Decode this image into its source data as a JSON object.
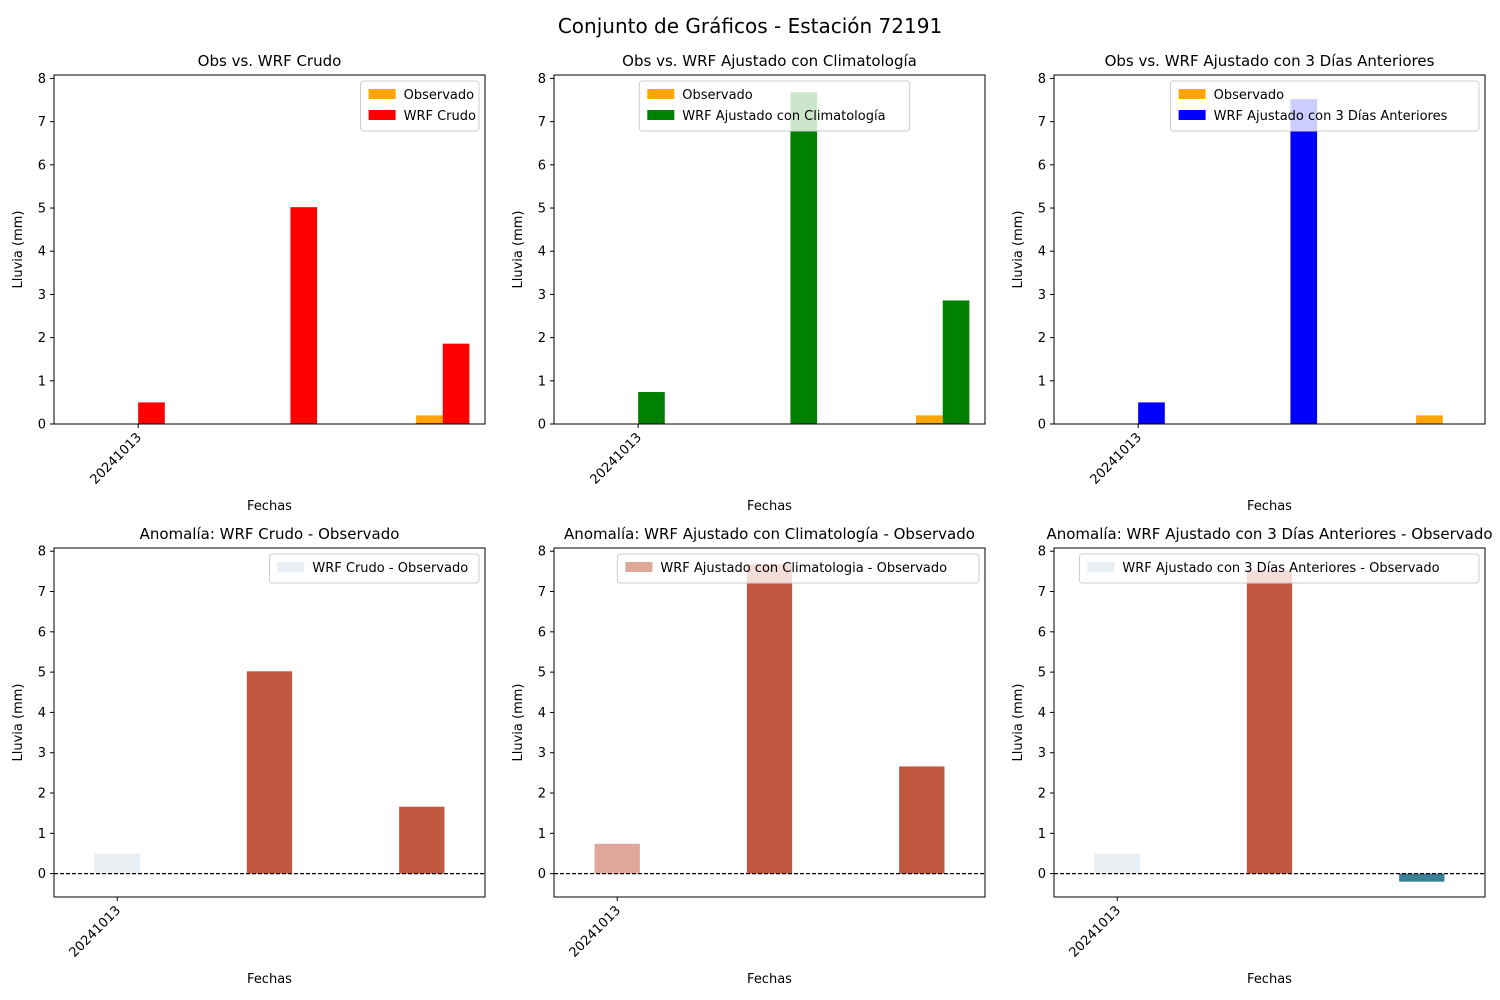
{
  "figure": {
    "title": "Conjunto de Gráficos - Estación 72191"
  },
  "chart_data": [
    {
      "type": "bar",
      "title": "Obs vs. WRF Crudo",
      "xlabel": "Fechas",
      "ylabel": "Lluvia (mm)",
      "x_tick_label": "20241013",
      "ylim": [
        0,
        8.08
      ],
      "yticks": [
        0,
        1,
        2,
        3,
        4,
        5,
        6,
        7,
        8
      ],
      "legend_position": "upper right",
      "grid": false,
      "slots": 3,
      "series": [
        {
          "name": "Observado",
          "color": "#ffa500",
          "values": [
            0,
            0,
            0.2
          ]
        },
        {
          "name": "WRF Crudo",
          "color": "#ff0000",
          "values": [
            0.5,
            5.02,
            1.86
          ]
        }
      ],
      "extra_bars": [
        {
          "slot": 2,
          "offset": -0.5,
          "value": 0.02,
          "color": "#ff0000"
        }
      ]
    },
    {
      "type": "bar",
      "title": "Obs vs. WRF Ajustado con Climatología",
      "xlabel": "Fechas",
      "ylabel": "Lluvia (mm)",
      "x_tick_label": "20241013",
      "ylim": [
        0,
        8.08
      ],
      "yticks": [
        0,
        1,
        2,
        3,
        4,
        5,
        6,
        7,
        8
      ],
      "legend_position": "upper center",
      "grid": false,
      "slots": 3,
      "series": [
        {
          "name": "Observado",
          "color": "#ffa500",
          "values": [
            0,
            0,
            0.2
          ]
        },
        {
          "name": "WRF Ajustado con Climatología",
          "color": "#008000",
          "values": [
            0.74,
            7.68,
            2.86
          ]
        }
      ],
      "extra_bars": [
        {
          "slot": 2,
          "offset": -0.5,
          "value": 0.02,
          "color": "#008000"
        }
      ]
    },
    {
      "type": "bar",
      "title": "Obs vs. WRF Ajustado con 3 Días Anteriores",
      "xlabel": "Fechas",
      "ylabel": "Lluvia (mm)",
      "x_tick_label": "20241013",
      "ylim": [
        0,
        8.08
      ],
      "yticks": [
        0,
        1,
        2,
        3,
        4,
        5,
        6,
        7,
        8
      ],
      "legend_position": "upper right",
      "grid": false,
      "slots": 3,
      "series": [
        {
          "name": "Observado",
          "color": "#ffa500",
          "values": [
            0,
            0,
            0.2
          ]
        },
        {
          "name": "WRF Ajustado con 3 Días Anteriores",
          "color": "#0000ff",
          "values": [
            0.5,
            7.52,
            0
          ]
        }
      ],
      "extra_bars": []
    },
    {
      "type": "bar",
      "title": "Anomalía: WRF Crudo - Observado",
      "xlabel": "Fechas",
      "ylabel": "Lluvia (mm)",
      "x_tick_label": "20241013",
      "ylim": [
        -0.58,
        8.08
      ],
      "yticks": [
        0,
        1,
        2,
        3,
        4,
        5,
        6,
        7,
        8
      ],
      "legend_position": "upper right",
      "grid": false,
      "reference_line": 0,
      "slots": 3,
      "series": [
        {
          "name": "WRF Crudo - Observado",
          "values": [
            0.5,
            5.02,
            1.66
          ],
          "colors": [
            "#e8eef1",
            "#c1573e",
            "#c1573e"
          ]
        }
      ]
    },
    {
      "type": "bar",
      "title": "Anomalía: WRF Ajustado con Climatología - Observado",
      "xlabel": "Fechas",
      "ylabel": "Lluvia (mm)",
      "x_tick_label": "20241013",
      "ylim": [
        -0.58,
        8.08
      ],
      "yticks": [
        0,
        1,
        2,
        3,
        4,
        5,
        6,
        7,
        8
      ],
      "legend_position": "upper right",
      "grid": false,
      "reference_line": 0,
      "slots": 3,
      "series": [
        {
          "name": "WRF Ajustado con Climatologia - Observado",
          "values": [
            0.74,
            7.68,
            2.66
          ],
          "colors": [
            "#dfa69a",
            "#c1573e",
            "#c1573e"
          ]
        }
      ]
    },
    {
      "type": "bar",
      "title": "Anomalía: WRF Ajustado con 3 Días Anteriores - Observado",
      "xlabel": "Fechas",
      "ylabel": "Lluvia (mm)",
      "x_tick_label": "20241013",
      "ylim": [
        -0.58,
        8.08
      ],
      "yticks": [
        0,
        1,
        2,
        3,
        4,
        5,
        6,
        7,
        8
      ],
      "legend_position": "upper right",
      "grid": false,
      "reference_line": 0,
      "slots": 3,
      "series": [
        {
          "name": "WRF Ajustado con 3 Días Anteriores - Observado",
          "values": [
            0.5,
            7.52,
            -0.2
          ],
          "colors": [
            "#e8eef1",
            "#c1573e",
            "#3a7f96"
          ]
        }
      ]
    }
  ]
}
